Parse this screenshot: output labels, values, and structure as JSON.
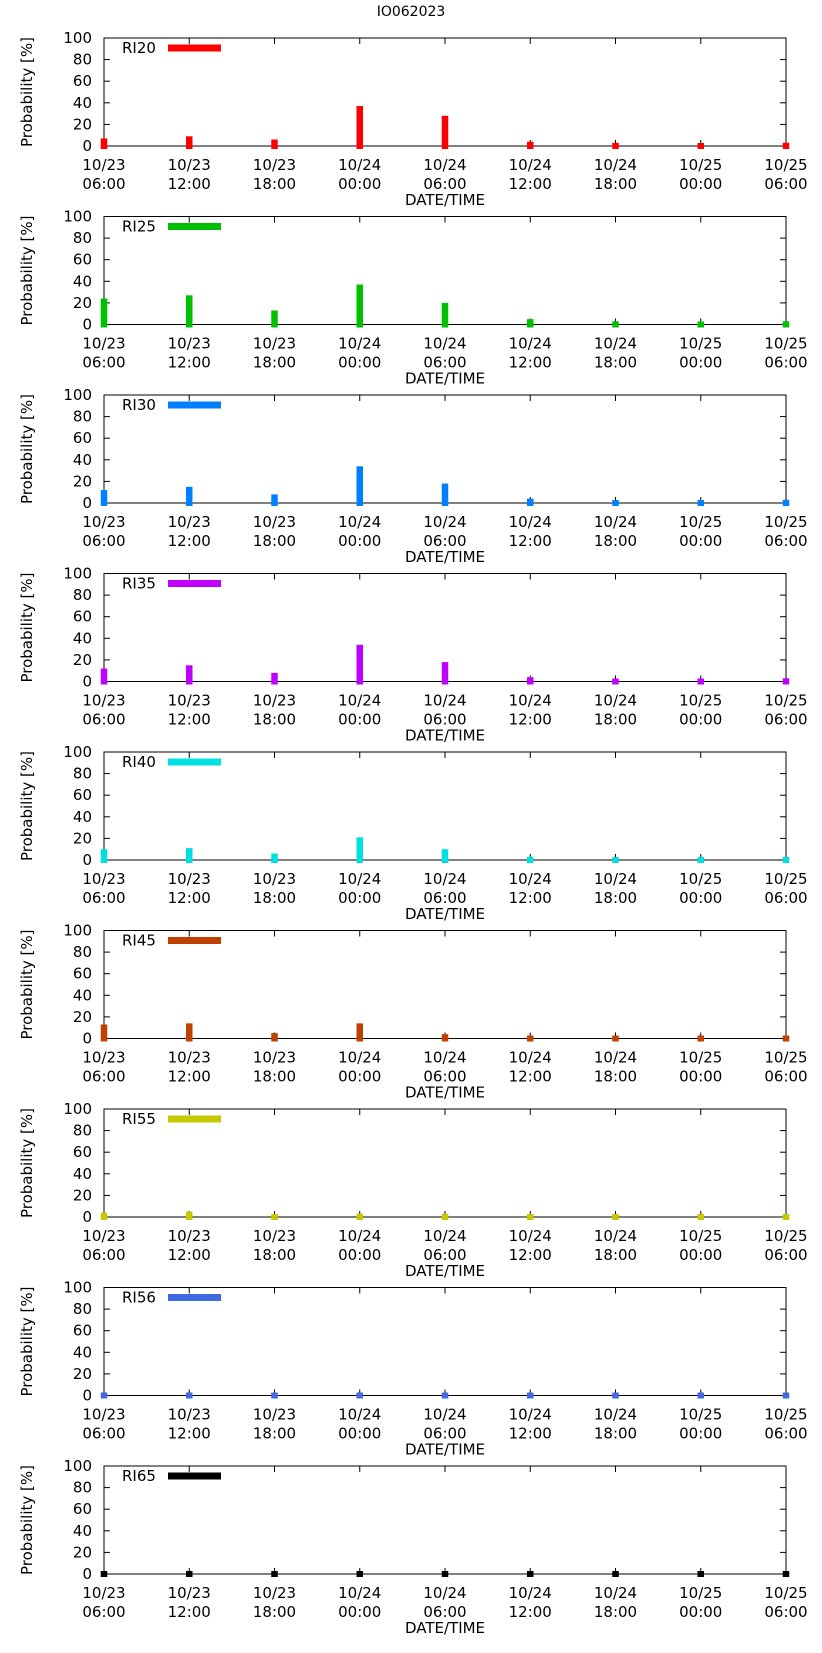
{
  "title": "IO062023",
  "chart_data": [
    {
      "type": "bar",
      "title": "",
      "legend": "RI20",
      "color": "#ff0000",
      "xlabel": "DATE/TIME",
      "ylabel": "Probability [%]",
      "ylim": [
        0,
        100
      ],
      "yticks": [
        "0",
        "20",
        "40",
        "60",
        "80",
        "100"
      ],
      "categories": [
        [
          "10/23",
          "06:00"
        ],
        [
          "10/23",
          "12:00"
        ],
        [
          "10/23",
          "18:00"
        ],
        [
          "10/24",
          "00:00"
        ],
        [
          "10/24",
          "06:00"
        ],
        [
          "10/24",
          "12:00"
        ],
        [
          "10/24",
          "18:00"
        ],
        [
          "10/25",
          "00:00"
        ],
        [
          "10/25",
          "06:00"
        ]
      ],
      "values": [
        7,
        9,
        6,
        37,
        28,
        4,
        3,
        2,
        3
      ]
    },
    {
      "type": "bar",
      "title": "",
      "legend": "RI25",
      "color": "#00c000",
      "xlabel": "DATE/TIME",
      "ylabel": "Probability [%]",
      "ylim": [
        0,
        100
      ],
      "yticks": [
        "0",
        "20",
        "40",
        "60",
        "80",
        "100"
      ],
      "categories": [
        [
          "10/23",
          "06:00"
        ],
        [
          "10/23",
          "12:00"
        ],
        [
          "10/23",
          "18:00"
        ],
        [
          "10/24",
          "00:00"
        ],
        [
          "10/24",
          "06:00"
        ],
        [
          "10/24",
          "12:00"
        ],
        [
          "10/24",
          "18:00"
        ],
        [
          "10/25",
          "00:00"
        ],
        [
          "10/25",
          "06:00"
        ]
      ],
      "values": [
        24,
        27,
        13,
        37,
        20,
        5,
        3,
        2,
        3
      ]
    },
    {
      "type": "bar",
      "title": "",
      "legend": "RI30",
      "color": "#0080ff",
      "xlabel": "DATE/TIME",
      "ylabel": "Probability [%]",
      "ylim": [
        0,
        100
      ],
      "yticks": [
        "0",
        "20",
        "40",
        "60",
        "80",
        "100"
      ],
      "categories": [
        [
          "10/23",
          "06:00"
        ],
        [
          "10/23",
          "12:00"
        ],
        [
          "10/23",
          "18:00"
        ],
        [
          "10/24",
          "00:00"
        ],
        [
          "10/24",
          "06:00"
        ],
        [
          "10/24",
          "12:00"
        ],
        [
          "10/24",
          "18:00"
        ],
        [
          "10/25",
          "00:00"
        ],
        [
          "10/25",
          "06:00"
        ]
      ],
      "values": [
        12,
        15,
        8,
        34,
        18,
        4,
        2,
        2,
        3
      ]
    },
    {
      "type": "bar",
      "title": "",
      "legend": "RI35",
      "color": "#c000ff",
      "xlabel": "DATE/TIME",
      "ylabel": "Probability [%]",
      "ylim": [
        0,
        100
      ],
      "yticks": [
        "0",
        "20",
        "40",
        "60",
        "80",
        "100"
      ],
      "categories": [
        [
          "10/23",
          "06:00"
        ],
        [
          "10/23",
          "12:00"
        ],
        [
          "10/23",
          "18:00"
        ],
        [
          "10/24",
          "00:00"
        ],
        [
          "10/24",
          "06:00"
        ],
        [
          "10/24",
          "12:00"
        ],
        [
          "10/24",
          "18:00"
        ],
        [
          "10/25",
          "00:00"
        ],
        [
          "10/25",
          "06:00"
        ]
      ],
      "values": [
        12,
        15,
        8,
        34,
        18,
        4,
        2,
        2,
        3
      ]
    },
    {
      "type": "bar",
      "title": "",
      "legend": "RI40",
      "color": "#00e0e0",
      "xlabel": "DATE/TIME",
      "ylabel": "Probability [%]",
      "ylim": [
        0,
        100
      ],
      "yticks": [
        "0",
        "20",
        "40",
        "60",
        "80",
        "100"
      ],
      "categories": [
        [
          "10/23",
          "06:00"
        ],
        [
          "10/23",
          "12:00"
        ],
        [
          "10/23",
          "18:00"
        ],
        [
          "10/24",
          "00:00"
        ],
        [
          "10/24",
          "06:00"
        ],
        [
          "10/24",
          "12:00"
        ],
        [
          "10/24",
          "18:00"
        ],
        [
          "10/25",
          "00:00"
        ],
        [
          "10/25",
          "06:00"
        ]
      ],
      "values": [
        10,
        11,
        6,
        21,
        10,
        3,
        2,
        2,
        3
      ]
    },
    {
      "type": "bar",
      "title": "",
      "legend": "RI45",
      "color": "#c04000",
      "xlabel": "DATE/TIME",
      "ylabel": "Probability [%]",
      "ylim": [
        0,
        100
      ],
      "yticks": [
        "0",
        "20",
        "40",
        "60",
        "80",
        "100"
      ],
      "categories": [
        [
          "10/23",
          "06:00"
        ],
        [
          "10/23",
          "12:00"
        ],
        [
          "10/23",
          "18:00"
        ],
        [
          "10/24",
          "00:00"
        ],
        [
          "10/24",
          "06:00"
        ],
        [
          "10/24",
          "12:00"
        ],
        [
          "10/24",
          "18:00"
        ],
        [
          "10/25",
          "00:00"
        ],
        [
          "10/25",
          "06:00"
        ]
      ],
      "values": [
        13,
        14,
        5,
        14,
        4,
        2,
        2,
        2,
        2
      ]
    },
    {
      "type": "bar",
      "title": "",
      "legend": "RI55",
      "color": "#c8c800",
      "xlabel": "DATE/TIME",
      "ylabel": "Probability [%]",
      "ylim": [
        0,
        100
      ],
      "yticks": [
        "0",
        "20",
        "40",
        "60",
        "80",
        "100"
      ],
      "categories": [
        [
          "10/23",
          "06:00"
        ],
        [
          "10/23",
          "12:00"
        ],
        [
          "10/23",
          "18:00"
        ],
        [
          "10/24",
          "00:00"
        ],
        [
          "10/24",
          "06:00"
        ],
        [
          "10/24",
          "12:00"
        ],
        [
          "10/24",
          "18:00"
        ],
        [
          "10/25",
          "00:00"
        ],
        [
          "10/25",
          "06:00"
        ]
      ],
      "values": [
        4,
        5,
        2,
        3,
        1,
        1,
        1,
        1,
        1
      ]
    },
    {
      "type": "bar",
      "title": "",
      "legend": "RI56",
      "color": "#4169e1",
      "xlabel": "DATE/TIME",
      "ylabel": "Probability [%]",
      "ylim": [
        0,
        100
      ],
      "yticks": [
        "0",
        "20",
        "40",
        "60",
        "80",
        "100"
      ],
      "categories": [
        [
          "10/23",
          "06:00"
        ],
        [
          "10/23",
          "12:00"
        ],
        [
          "10/23",
          "18:00"
        ],
        [
          "10/24",
          "00:00"
        ],
        [
          "10/24",
          "06:00"
        ],
        [
          "10/24",
          "12:00"
        ],
        [
          "10/24",
          "18:00"
        ],
        [
          "10/25",
          "00:00"
        ],
        [
          "10/25",
          "06:00"
        ]
      ],
      "values": [
        2,
        2,
        1,
        2,
        1,
        1,
        1,
        1,
        1
      ]
    },
    {
      "type": "bar",
      "title": "",
      "legend": "RI65",
      "color": "#000000",
      "xlabel": "DATE/TIME",
      "ylabel": "Probability [%]",
      "ylim": [
        0,
        100
      ],
      "yticks": [
        "0",
        "20",
        "40",
        "60",
        "80",
        "100"
      ],
      "categories": [
        [
          "10/23",
          "06:00"
        ],
        [
          "10/23",
          "12:00"
        ],
        [
          "10/23",
          "18:00"
        ],
        [
          "10/24",
          "00:00"
        ],
        [
          "10/24",
          "06:00"
        ],
        [
          "10/24",
          "12:00"
        ],
        [
          "10/24",
          "18:00"
        ],
        [
          "10/25",
          "00:00"
        ],
        [
          "10/25",
          "06:00"
        ]
      ],
      "values": [
        0,
        0,
        0,
        0,
        0,
        0,
        0,
        0,
        0
      ]
    }
  ]
}
